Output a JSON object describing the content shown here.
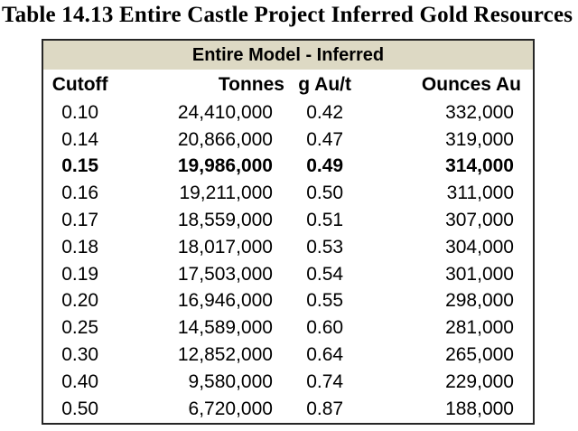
{
  "page_title": "Table 14.13 Entire Castle Project Inferred Gold Resources",
  "table": {
    "merged_header": "Entire Model - Inferred",
    "columns": [
      "Cutoff",
      "Tonnes",
      "g Au/t",
      "Ounces Au"
    ],
    "bold_row_index": 2,
    "rows": [
      [
        "0.10",
        "24,410,000",
        "0.42",
        "332,000"
      ],
      [
        "0.14",
        "20,866,000",
        "0.47",
        "319,000"
      ],
      [
        "0.15",
        "19,986,000",
        "0.49",
        "314,000"
      ],
      [
        "0.16",
        "19,211,000",
        "0.50",
        "311,000"
      ],
      [
        "0.17",
        "18,559,000",
        "0.51",
        "307,000"
      ],
      [
        "0.18",
        "18,017,000",
        "0.53",
        "304,000"
      ],
      [
        "0.19",
        "17,503,000",
        "0.54",
        "301,000"
      ],
      [
        "0.20",
        "16,946,000",
        "0.55",
        "298,000"
      ],
      [
        "0.25",
        "14,589,000",
        "0.60",
        "281,000"
      ],
      [
        "0.30",
        "12,852,000",
        "0.64",
        "265,000"
      ],
      [
        "0.40",
        "9,580,000",
        "0.74",
        "229,000"
      ],
      [
        "0.50",
        "6,720,000",
        "0.87",
        "188,000"
      ]
    ]
  },
  "colors": {
    "header_band_background": "#DDD9C4",
    "table_border": "#262626",
    "text": "#000000",
    "page_background": "#FFFFFF"
  },
  "chart_data": {
    "type": "table",
    "title": "Entire Model - Inferred",
    "columns": [
      "Cutoff",
      "Tonnes",
      "g Au/t",
      "Ounces Au"
    ],
    "rows": [
      [
        0.1,
        24410000,
        0.42,
        332000
      ],
      [
        0.14,
        20866000,
        0.47,
        319000
      ],
      [
        0.15,
        19986000,
        0.49,
        314000
      ],
      [
        0.16,
        19211000,
        0.5,
        311000
      ],
      [
        0.17,
        18559000,
        0.51,
        307000
      ],
      [
        0.18,
        18017000,
        0.53,
        304000
      ],
      [
        0.19,
        17503000,
        0.54,
        301000
      ],
      [
        0.2,
        16946000,
        0.55,
        298000
      ],
      [
        0.25,
        14589000,
        0.6,
        281000
      ],
      [
        0.3,
        12852000,
        0.64,
        265000
      ],
      [
        0.4,
        9580000,
        0.74,
        229000
      ],
      [
        0.5,
        6720000,
        0.87,
        188000
      ]
    ]
  }
}
